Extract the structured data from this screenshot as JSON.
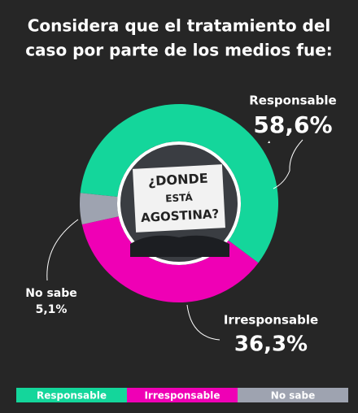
{
  "chart_data": {
    "type": "pie",
    "title": [
      "Considera que el tratamiento del",
      "caso por parte de los medios fue:"
    ],
    "categories": [
      "Responsable",
      "Irresponsable",
      "No sabe"
    ],
    "values": [
      58.6,
      36.3,
      5.1
    ],
    "value_labels": [
      "58,6%",
      "36,3%",
      "5,1%"
    ],
    "colors": [
      "#14d69b",
      "#ef00b5",
      "#9ea3b0"
    ],
    "center_image_text": [
      "¿DONDE",
      "ESTÁ",
      "AGOSTINA?"
    ]
  }
}
